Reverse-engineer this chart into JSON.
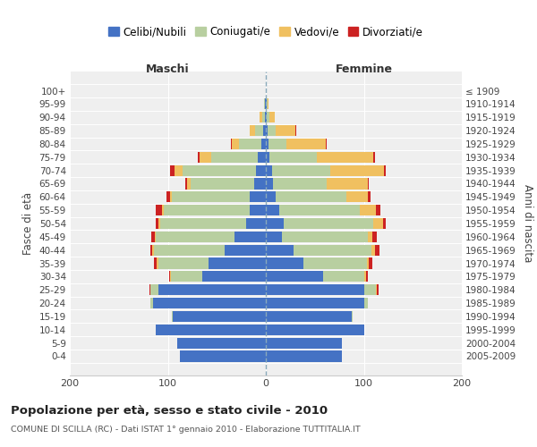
{
  "age_groups": [
    "0-4",
    "5-9",
    "10-14",
    "15-19",
    "20-24",
    "25-29",
    "30-34",
    "35-39",
    "40-44",
    "45-49",
    "50-54",
    "55-59",
    "60-64",
    "65-69",
    "70-74",
    "75-79",
    "80-84",
    "85-89",
    "90-94",
    "95-99",
    "100+"
  ],
  "birth_years": [
    "2005-2009",
    "2000-2004",
    "1995-1999",
    "1990-1994",
    "1985-1989",
    "1980-1984",
    "1975-1979",
    "1970-1974",
    "1965-1969",
    "1960-1964",
    "1955-1959",
    "1950-1954",
    "1945-1949",
    "1940-1944",
    "1935-1939",
    "1930-1934",
    "1925-1929",
    "1920-1924",
    "1915-1919",
    "1910-1914",
    "≤ 1909"
  ],
  "maschi": {
    "celibi": [
      88,
      90,
      112,
      95,
      115,
      110,
      65,
      58,
      42,
      32,
      20,
      16,
      16,
      12,
      10,
      8,
      5,
      3,
      1,
      1,
      0
    ],
    "coniugati": [
      0,
      0,
      0,
      1,
      3,
      8,
      32,
      52,
      72,
      80,
      88,
      88,
      80,
      65,
      75,
      48,
      22,
      8,
      3,
      1,
      0
    ],
    "vedovi": [
      0,
      0,
      0,
      0,
      0,
      0,
      1,
      1,
      2,
      1,
      2,
      2,
      2,
      3,
      8,
      12,
      8,
      5,
      2,
      0,
      0
    ],
    "divorziati": [
      0,
      0,
      0,
      0,
      0,
      1,
      1,
      3,
      2,
      4,
      2,
      6,
      3,
      2,
      5,
      1,
      1,
      0,
      0,
      0,
      0
    ]
  },
  "femmine": {
    "nubili": [
      78,
      78,
      100,
      88,
      100,
      100,
      58,
      38,
      28,
      16,
      18,
      14,
      10,
      7,
      6,
      4,
      3,
      2,
      1,
      1,
      0
    ],
    "coniugate": [
      0,
      0,
      0,
      1,
      4,
      12,
      42,
      65,
      80,
      88,
      92,
      82,
      72,
      55,
      60,
      48,
      18,
      8,
      3,
      1,
      0
    ],
    "vedove": [
      0,
      0,
      0,
      0,
      0,
      1,
      2,
      2,
      3,
      5,
      10,
      16,
      22,
      42,
      55,
      58,
      40,
      20,
      5,
      1,
      0
    ],
    "divorziate": [
      0,
      0,
      0,
      0,
      0,
      2,
      2,
      4,
      5,
      4,
      2,
      5,
      3,
      1,
      1,
      1,
      1,
      1,
      0,
      0,
      0
    ]
  },
  "colors": {
    "celibi": "#4472c4",
    "coniugati": "#b8cfa0",
    "vedovi": "#f0c060",
    "divorziati": "#cc2222"
  },
  "xlim": 200,
  "title": "Popolazione per età, sesso e stato civile - 2010",
  "subtitle": "COMUNE DI SCILLA (RC) - Dati ISTAT 1° gennaio 2010 - Elaborazione TUTTITALIA.IT",
  "ylabel_left": "Fasce di età",
  "ylabel_right": "Anni di nascita",
  "header_maschi": "Maschi",
  "header_femmine": "Femmine",
  "legend_labels": [
    "Celibi/Nubili",
    "Coniugati/e",
    "Vedovi/e",
    "Divorziati/e"
  ],
  "bg_color": "#ffffff",
  "plot_bg": "#efefef"
}
